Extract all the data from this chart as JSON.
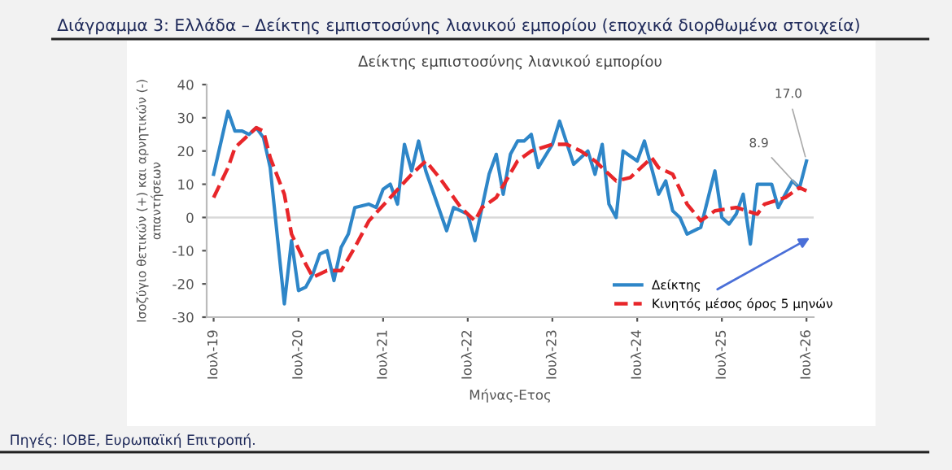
{
  "chart_data": {
    "type": "line",
    "title": "Διάγραμμα 3: Ελλάδα – Δείκτης εμπιστοσύνης λιανικού εμπορίου (εποχικά διορθωμένα στοιχεία)",
    "subtitle": "Δείκτης εμπιστοσύνης λιανικού εμπορίου",
    "xlabel": "Μήνας-Ετος",
    "ylabel": "Ισοζύγιο θετικών (+) και αρνητικών (-)\nαπαντήσεων",
    "series": [
      {
        "name": "Δείκτης",
        "color": "#2e86c8",
        "line_style": "solid",
        "x": [
          "2019-07",
          "2019-09",
          "2019-10",
          "2019-11",
          "2019-12",
          "2020-01",
          "2020-02",
          "2020-03",
          "2020-05",
          "2020-06",
          "2020-07",
          "2020-08",
          "2020-09",
          "2020-10",
          "2020-11",
          "2020-12",
          "2021-01",
          "2021-02",
          "2021-03",
          "2021-05",
          "2021-06",
          "2021-07",
          "2021-08",
          "2021-09",
          "2021-10",
          "2021-11",
          "2021-12",
          "2022-01",
          "2022-04",
          "2022-05",
          "2022-07",
          "2022-08",
          "2022-10",
          "2022-11",
          "2022-12",
          "2023-01",
          "2023-02",
          "2023-03",
          "2023-04",
          "2023-05",
          "2023-07",
          "2023-08",
          "2023-10",
          "2023-12",
          "2024-01",
          "2024-02",
          "2024-03",
          "2024-04",
          "2024-05",
          "2024-07",
          "2024-08",
          "2024-10",
          "2024-11",
          "2024-12",
          "2025-01",
          "2025-02",
          "2025-04",
          "2025-06",
          "2025-07",
          "2025-08",
          "2025-09",
          "2025-10",
          "2025-11",
          "2025-12",
          "2026-02",
          "2026-03",
          "2026-05",
          "2026-06",
          "2026-07"
        ],
        "values": [
          13,
          32,
          26,
          26,
          25,
          27,
          24,
          15,
          -26,
          -7,
          -22,
          -21,
          -17,
          -11,
          -10,
          -19,
          -9,
          -5,
          3,
          4,
          3,
          8.5,
          10,
          4,
          22,
          14,
          23,
          14,
          -4,
          3,
          1,
          -7,
          13,
          19,
          7,
          19,
          23,
          23,
          25,
          15,
          22,
          29,
          16,
          20,
          13,
          22,
          4,
          0,
          20,
          17,
          23,
          7,
          11,
          2,
          0,
          -5,
          -3,
          14,
          0,
          -2,
          1,
          7,
          -8,
          10,
          10,
          3,
          11,
          8.9,
          17.0
        ]
      },
      {
        "name": "Κινητός μέσος όρος 5 μηνών",
        "color": "#e8262a",
        "line_style": "dashed",
        "x": [
          "2019-07",
          "2019-09",
          "2019-10",
          "2020-01",
          "2020-02",
          "2020-03",
          "2020-05",
          "2020-06",
          "2020-08",
          "2020-09",
          "2020-11",
          "2021-01",
          "2021-03",
          "2021-05",
          "2021-08",
          "2021-11",
          "2022-01",
          "2022-03",
          "2022-06",
          "2022-08",
          "2022-09",
          "2022-11",
          "2023-02",
          "2023-04",
          "2023-07",
          "2023-09",
          "2023-11",
          "2024-01",
          "2024-04",
          "2024-06",
          "2024-09",
          "2024-10",
          "2024-12",
          "2025-02",
          "2025-04",
          "2025-06",
          "2025-09",
          "2025-12",
          "2026-01",
          "2026-04",
          "2026-06",
          "2026-07"
        ],
        "values": [
          6,
          15,
          21,
          27,
          26,
          18,
          7,
          -5,
          -14,
          -18,
          -16,
          -16,
          -9,
          -1,
          6,
          13,
          17,
          12,
          3,
          -1,
          3,
          6,
          17,
          20,
          22,
          22,
          20,
          17,
          11,
          12,
          18,
          15,
          13,
          4,
          -1,
          2,
          3,
          1,
          4,
          6,
          9,
          8
        ]
      }
    ],
    "xlim": [
      "2019-06",
      "2026-08"
    ],
    "xticks": [
      {
        "value": "2019-07",
        "label": "Ιουλ-19"
      },
      {
        "value": "2020-07",
        "label": "Ιουλ-20"
      },
      {
        "value": "2021-07",
        "label": "Ιουλ-21"
      },
      {
        "value": "2022-07",
        "label": "Ιουλ-22"
      },
      {
        "value": "2023-07",
        "label": "Ιουλ-23"
      },
      {
        "value": "2024-07",
        "label": "Ιουλ-24"
      },
      {
        "value": "2025-07",
        "label": "Ιουλ-25"
      },
      {
        "value": "2026-07",
        "label": "Ιουλ-26"
      }
    ],
    "ylim": [
      -30,
      40
    ],
    "yticks": [
      -30,
      -20,
      -10,
      0,
      10,
      20,
      30,
      40
    ],
    "ref_lines": [
      {
        "axis": "y",
        "value": 0,
        "color": "#d9d9d9"
      }
    ],
    "grid": false,
    "legend": "bottom right",
    "annotations": [
      {
        "text": "8.9",
        "x": "2026-06",
        "y": 8.9
      },
      {
        "text": "17.0",
        "x": "2026-07",
        "y": 17.0
      },
      "Πηγές: ΙΟΒΕ, Ευρωπαϊκή Επιτροπή."
    ]
  }
}
